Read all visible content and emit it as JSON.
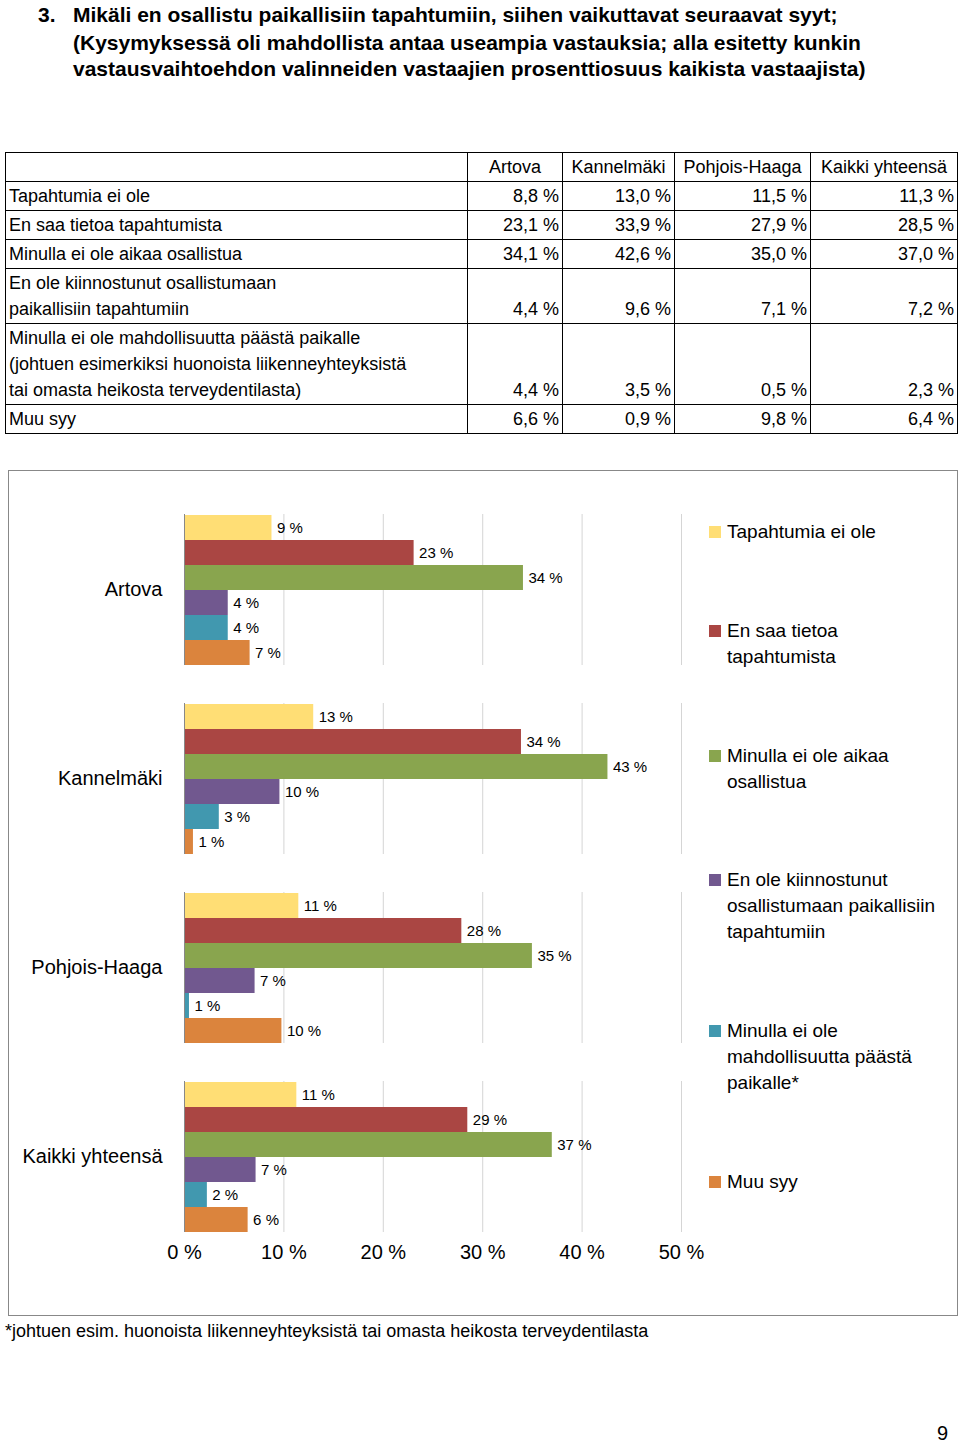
{
  "heading": {
    "number": "3.",
    "title": "Mikäli en osallistu paikallisiin tapahtumiin, siihen vaikuttavat seuraavat syyt;",
    "subtitle": "(Kysymyksessä oli mahdollista antaa useampia vastauksia; alla esitetty kunkin vastausvaihtoehdon valinneiden vastaajien prosenttiosuus kaikista vastaajista)"
  },
  "table": {
    "header": [
      "Artova",
      "Kannelmäki",
      "Pohjois-Haaga",
      "Kaikki yhteensä"
    ],
    "rows": [
      {
        "label": "Tapahtumia ei ole",
        "values": [
          "8,8 %",
          "13,0 %",
          "11,5 %",
          "11,3 %"
        ]
      },
      {
        "label": "En saa tietoa tapahtumista",
        "values": [
          "23,1 %",
          "33,9 %",
          "27,9 %",
          "28,5 %"
        ]
      },
      {
        "label": "Minulla ei ole aikaa osallistua",
        "values": [
          "34,1 %",
          "42,6 %",
          "35,0 %",
          "37,0 %"
        ]
      },
      {
        "label": "En  ole kiinnostunut osallistumaan\npaikallisiin tapahtumiin",
        "values": [
          "4,4 %",
          "9,6 %",
          "7,1 %",
          "7,2 %"
        ]
      },
      {
        "label": "Minulla ei ole mahdollisuutta päästä paikalle\n(johtuen esimerkiksi huonoista liikenneyhteyksistä\ntai omasta heikosta terveydentilasta)",
        "values": [
          "4,4 %",
          "3,5 %",
          "0,5 %",
          "2,3 %"
        ]
      },
      {
        "label": "Muu syy",
        "values": [
          "6,6 %",
          "0,9 %",
          "9,8 %",
          "6,4 %"
        ]
      }
    ]
  },
  "chart_data": {
    "type": "bar",
    "orientation": "horizontal",
    "categories": [
      "Artova",
      "Kannelmäki",
      "Pohjois-Haaga",
      "Kaikki yhteensä"
    ],
    "series": [
      {
        "name": "Tapahtumia ei ole",
        "color": "#ffde75",
        "values": [
          8.8,
          13.0,
          11.5,
          11.3
        ],
        "value_labels": [
          "9 %",
          "13 %",
          "11 %",
          "11 %"
        ]
      },
      {
        "name": "En saa tietoa tapahtumista",
        "color": "#aa4643",
        "values": [
          23.1,
          33.9,
          27.9,
          28.5
        ],
        "value_labels": [
          "23 %",
          "34 %",
          "28 %",
          "29 %"
        ]
      },
      {
        "name": "Minulla ei ole aikaa osallistua",
        "color": "#89a54e",
        "values": [
          34.1,
          42.6,
          35.0,
          37.0
        ],
        "value_labels": [
          "34 %",
          "43 %",
          "35 %",
          "37 %"
        ]
      },
      {
        "name": "En  ole kiinnostunut osallistumaan paikallisiin tapahtumiin",
        "color": "#71588f",
        "values": [
          4.4,
          9.6,
          7.1,
          7.2
        ],
        "value_labels": [
          "4 %",
          "10 %",
          "7 %",
          "7 %"
        ]
      },
      {
        "name": "Minulla ei ole mahdollisuutta päästä paikalle*",
        "color": "#4198af",
        "values": [
          4.4,
          3.5,
          0.5,
          2.3
        ],
        "value_labels": [
          "4 %",
          "3 %",
          "1 %",
          "2 %"
        ]
      },
      {
        "name": "Muu syy",
        "color": "#db843d",
        "values": [
          6.6,
          0.9,
          9.8,
          6.4
        ],
        "value_labels": [
          "7 %",
          "1 %",
          "10 %",
          "6 %"
        ]
      }
    ],
    "xlim": [
      0,
      50
    ],
    "xticks": [
      {
        "value": 0,
        "label": "0 %"
      },
      {
        "value": 10,
        "label": "10 %"
      },
      {
        "value": 20,
        "label": "20 %"
      },
      {
        "value": 30,
        "label": "30 %"
      },
      {
        "value": 40,
        "label": "40 %"
      },
      {
        "value": 50,
        "label": "50 %"
      }
    ],
    "grid": true,
    "data_labels": true,
    "legend": "right"
  },
  "footnote": "*johtuen esim. huonoista liikenneyhteyksistä tai omasta heikosta terveydentilasta",
  "page_number": "9"
}
